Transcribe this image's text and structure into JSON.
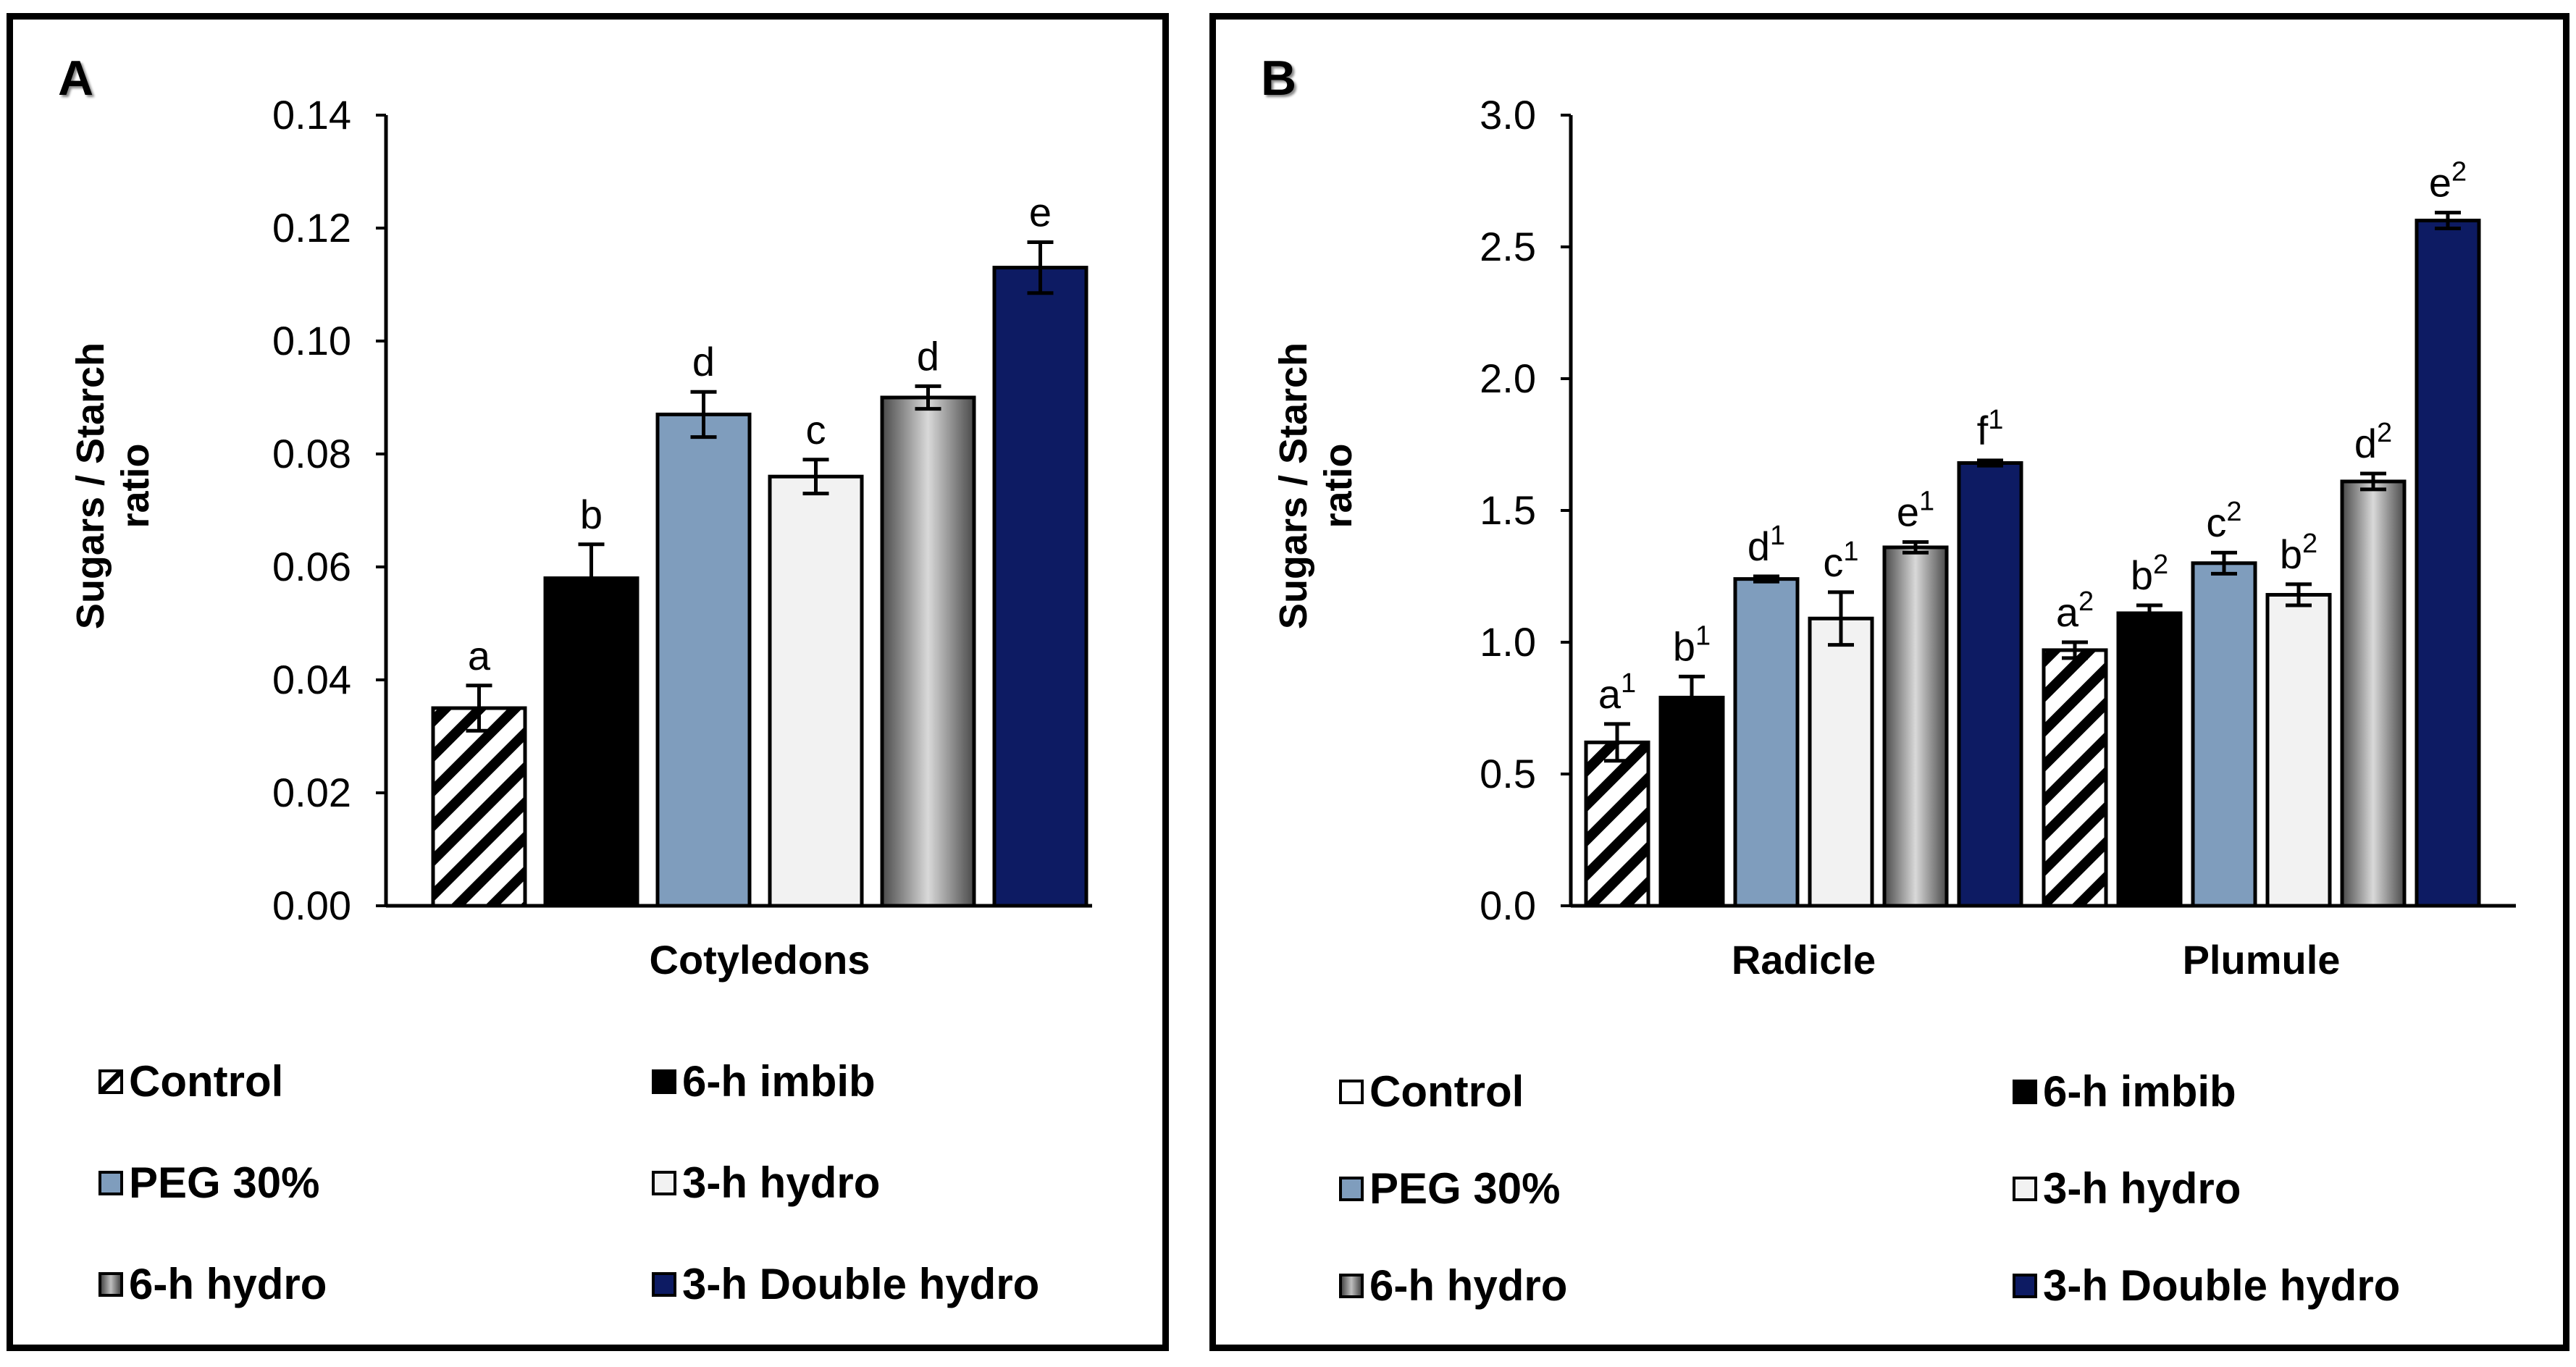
{
  "colors": {
    "control": "hatch-black-white",
    "imbib6h": "#000000",
    "peg30": "#7f9dbd",
    "hydro3h": "#f2f2f2",
    "hydro6h": "gradient-gray",
    "double3h": "#0d1b63"
  },
  "legend": [
    {
      "key": "control",
      "label": "Control"
    },
    {
      "key": "imbib6h",
      "label": "6-h imbib"
    },
    {
      "key": "peg30",
      "label": "PEG 30%"
    },
    {
      "key": "hydro3h",
      "label": "3-h hydro"
    },
    {
      "key": "hydro6h",
      "label": "6-h hydro"
    },
    {
      "key": "double3h",
      "label": "3-h Double hydro"
    }
  ],
  "chart_data": [
    {
      "panel": "A",
      "type": "bar",
      "ylabel_line1": "Sugars / Starch",
      "ylabel_line2": "ratio",
      "ylim": [
        0,
        0.14
      ],
      "yticks": [
        "0.00",
        "0.02",
        "0.04",
        "0.06",
        "0.08",
        "0.10",
        "0.12",
        "0.14"
      ],
      "grid": false,
      "legend_position": "bottom",
      "categories": [
        "Cotyledons"
      ],
      "series": [
        {
          "name": "Control",
          "key": "control",
          "values": [
            0.035
          ],
          "errors": [
            0.004
          ],
          "labels": [
            {
              "base": "a",
              "sup": ""
            }
          ]
        },
        {
          "name": "6-h imbib",
          "key": "imbib6h",
          "values": [
            0.058
          ],
          "errors": [
            0.006
          ],
          "labels": [
            {
              "base": "b",
              "sup": ""
            }
          ]
        },
        {
          "name": "PEG 30%",
          "key": "peg30",
          "values": [
            0.087
          ],
          "errors": [
            0.004
          ],
          "labels": [
            {
              "base": "d",
              "sup": ""
            }
          ]
        },
        {
          "name": "3-h hydro",
          "key": "hydro3h",
          "values": [
            0.076
          ],
          "errors": [
            0.003
          ],
          "labels": [
            {
              "base": "c",
              "sup": ""
            }
          ]
        },
        {
          "name": "6-h hydro",
          "key": "hydro6h",
          "values": [
            0.09
          ],
          "errors": [
            0.002
          ],
          "labels": [
            {
              "base": "d",
              "sup": ""
            }
          ]
        },
        {
          "name": "3-h Double hydro",
          "key": "double3h",
          "values": [
            0.113
          ],
          "errors": [
            0.0045
          ],
          "labels": [
            {
              "base": "e",
              "sup": ""
            }
          ]
        }
      ]
    },
    {
      "panel": "B",
      "type": "bar",
      "ylabel_line1": "Sugars / Starch",
      "ylabel_line2": "ratio",
      "ylim": [
        0,
        3.0
      ],
      "yticks": [
        "0.0",
        "0.5",
        "1.0",
        "1.5",
        "2.0",
        "2.5",
        "3.0"
      ],
      "grid": false,
      "legend_position": "bottom",
      "categories": [
        "Radicle",
        "Plumule"
      ],
      "series": [
        {
          "name": "Control",
          "key": "control",
          "values": [
            0.62,
            0.97
          ],
          "errors": [
            0.07,
            0.03
          ],
          "labels": [
            {
              "base": "a",
              "sup": "1"
            },
            {
              "base": "a",
              "sup": "2"
            }
          ]
        },
        {
          "name": "6-h imbib",
          "key": "imbib6h",
          "values": [
            0.79,
            1.11
          ],
          "errors": [
            0.08,
            0.03
          ],
          "labels": [
            {
              "base": "b",
              "sup": "1"
            },
            {
              "base": "b",
              "sup": "2"
            }
          ]
        },
        {
          "name": "PEG 30%",
          "key": "peg30",
          "values": [
            1.24,
            1.3
          ],
          "errors": [
            0.01,
            0.04
          ],
          "labels": [
            {
              "base": "d",
              "sup": "1"
            },
            {
              "base": "c",
              "sup": "2"
            }
          ]
        },
        {
          "name": "3-h hydro",
          "key": "hydro3h",
          "values": [
            1.09,
            1.18
          ],
          "errors": [
            0.1,
            0.04
          ],
          "labels": [
            {
              "base": "c",
              "sup": "1"
            },
            {
              "base": "b",
              "sup": "2"
            }
          ]
        },
        {
          "name": "6-h hydro",
          "key": "hydro6h",
          "values": [
            1.36,
            1.61
          ],
          "errors": [
            0.02,
            0.03
          ],
          "labels": [
            {
              "base": "e",
              "sup": "1"
            },
            {
              "base": "d",
              "sup": "2"
            }
          ]
        },
        {
          "name": "3-h Double hydro",
          "key": "double3h",
          "values": [
            1.68,
            2.6
          ],
          "errors": [
            0.01,
            0.03
          ],
          "labels": [
            {
              "base": "f",
              "sup": "1"
            },
            {
              "base": "e",
              "sup": "2"
            }
          ]
        }
      ]
    }
  ]
}
